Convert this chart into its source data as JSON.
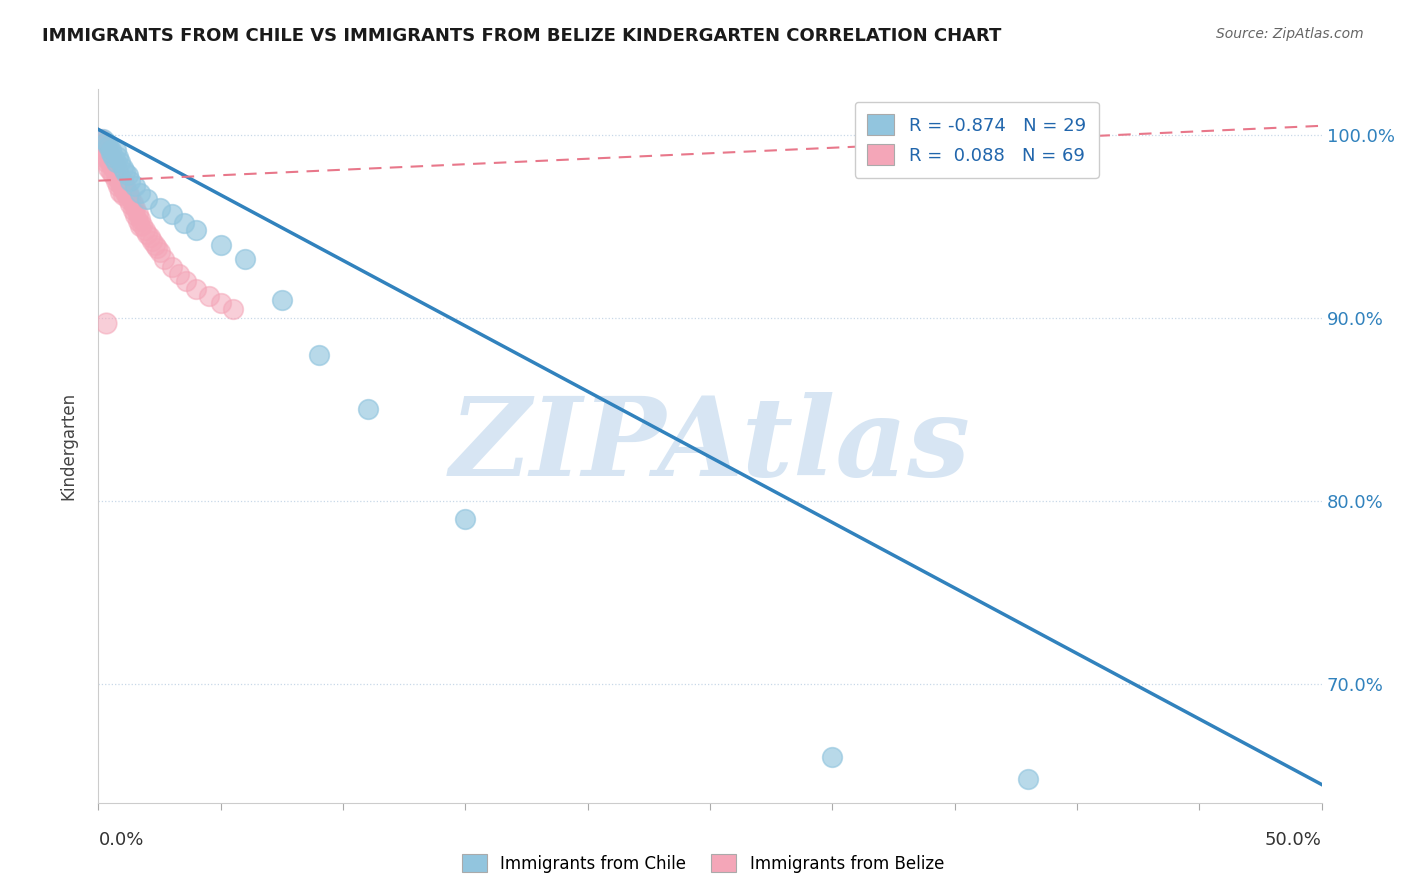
{
  "title": "IMMIGRANTS FROM CHILE VS IMMIGRANTS FROM BELIZE KINDERGARTEN CORRELATION CHART",
  "source_text": "Source: ZipAtlas.com",
  "ylabel": "Kindergarten",
  "blue_R": -0.874,
  "blue_N": 29,
  "pink_R": 0.088,
  "pink_N": 69,
  "blue_color": "#92c5de",
  "pink_color": "#f4a6b8",
  "blue_line_color": "#3182bd",
  "pink_line_color": "#e8778a",
  "grid_color": "#c8d8e8",
  "watermark_text": "ZIPAtlas",
  "watermark_color": "#c6dbef",
  "legend_label_blue": "Immigrants from Chile",
  "legend_label_pink": "Immigrants from Belize",
  "xlim": [
    0.0,
    0.5
  ],
  "ylim": [
    0.635,
    1.025
  ],
  "y_ticks": [
    0.7,
    0.8,
    0.9,
    1.0
  ],
  "y_tick_labels": [
    "70.0%",
    "80.0%",
    "90.0%",
    "100.0%"
  ],
  "blue_line_x": [
    0.0,
    0.5
  ],
  "blue_line_y": [
    1.003,
    0.645
  ],
  "pink_line_x": [
    0.0,
    0.5
  ],
  "pink_line_y": [
    0.975,
    1.005
  ],
  "blue_scatter_x": [
    0.002,
    0.003,
    0.004,
    0.005,
    0.005,
    0.006,
    0.007,
    0.007,
    0.008,
    0.009,
    0.01,
    0.011,
    0.012,
    0.013,
    0.015,
    0.017,
    0.02,
    0.025,
    0.03,
    0.035,
    0.04,
    0.05,
    0.06,
    0.075,
    0.09,
    0.11,
    0.15,
    0.3,
    0.38
  ],
  "blue_scatter_y": [
    0.998,
    0.996,
    0.994,
    0.992,
    0.99,
    0.988,
    0.992,
    0.985,
    0.988,
    0.985,
    0.982,
    0.98,
    0.978,
    0.975,
    0.972,
    0.968,
    0.965,
    0.96,
    0.957,
    0.952,
    0.948,
    0.94,
    0.932,
    0.91,
    0.88,
    0.85,
    0.79,
    0.66,
    0.648
  ],
  "pink_scatter_x": [
    0.001,
    0.001,
    0.002,
    0.002,
    0.003,
    0.003,
    0.003,
    0.004,
    0.004,
    0.004,
    0.005,
    0.005,
    0.005,
    0.006,
    0.006,
    0.006,
    0.007,
    0.007,
    0.007,
    0.008,
    0.008,
    0.008,
    0.009,
    0.009,
    0.009,
    0.01,
    0.01,
    0.01,
    0.011,
    0.011,
    0.012,
    0.012,
    0.013,
    0.013,
    0.014,
    0.014,
    0.015,
    0.015,
    0.016,
    0.016,
    0.017,
    0.017,
    0.018,
    0.019,
    0.02,
    0.021,
    0.022,
    0.023,
    0.024,
    0.025,
    0.027,
    0.03,
    0.033,
    0.036,
    0.04,
    0.045,
    0.05,
    0.055,
    0.002,
    0.003,
    0.004,
    0.005,
    0.006,
    0.007,
    0.008,
    0.009,
    0.01,
    0.011,
    0.012
  ],
  "pink_scatter_y": [
    0.998,
    0.995,
    0.993,
    0.99,
    0.992,
    0.988,
    0.985,
    0.99,
    0.986,
    0.982,
    0.988,
    0.984,
    0.98,
    0.986,
    0.982,
    0.978,
    0.983,
    0.979,
    0.975,
    0.98,
    0.976,
    0.972,
    0.977,
    0.973,
    0.969,
    0.975,
    0.971,
    0.967,
    0.972,
    0.968,
    0.969,
    0.965,
    0.966,
    0.962,
    0.963,
    0.959,
    0.96,
    0.956,
    0.957,
    0.953,
    0.954,
    0.95,
    0.951,
    0.948,
    0.946,
    0.944,
    0.942,
    0.94,
    0.938,
    0.936,
    0.932,
    0.928,
    0.924,
    0.92,
    0.916,
    0.912,
    0.908,
    0.905,
    0.997,
    0.994,
    0.991,
    0.988,
    0.985,
    0.982,
    0.979,
    0.976,
    0.973,
    0.97,
    0.967
  ],
  "pink_outlier_x": [
    0.003
  ],
  "pink_outlier_y": [
    0.897
  ]
}
